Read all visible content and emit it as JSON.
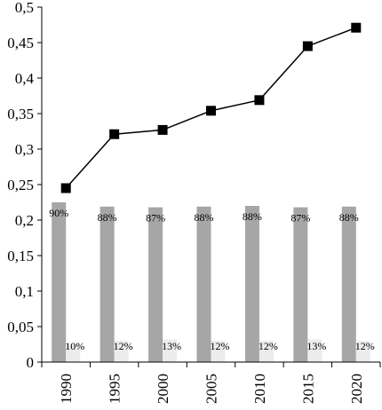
{
  "chart_data": {
    "type": "bar",
    "categories": [
      "1990",
      "1995",
      "2000",
      "2005",
      "2010",
      "2015",
      "2020"
    ],
    "ylim": [
      0,
      0.5
    ],
    "yticks": [
      "0",
      "0,05",
      "0,1",
      "0,15",
      "0,2",
      "0,25",
      "0,3",
      "0,35",
      "0,4",
      "0,45",
      "0,5"
    ],
    "grid": false,
    "series": [
      {
        "kind": "line",
        "marker": "square",
        "color": "#000000",
        "values": [
          0.245,
          0.321,
          0.327,
          0.354,
          0.369,
          0.445,
          0.471
        ]
      },
      {
        "kind": "bar",
        "color": "#a6a6a6",
        "values": [
          0.225,
          0.219,
          0.218,
          0.219,
          0.22,
          0.218,
          0.219
        ],
        "labels": [
          "90%",
          "88%",
          "87%",
          "88%",
          "88%",
          "87%",
          "88%"
        ]
      },
      {
        "kind": "bar",
        "color": "#ececec",
        "values": [
          0.025,
          0.03,
          0.032,
          0.03,
          0.03,
          0.032,
          0.03
        ],
        "labels": [
          "10%",
          "12%",
          "13%",
          "12%",
          "12%",
          "13%",
          "12%"
        ]
      }
    ]
  }
}
